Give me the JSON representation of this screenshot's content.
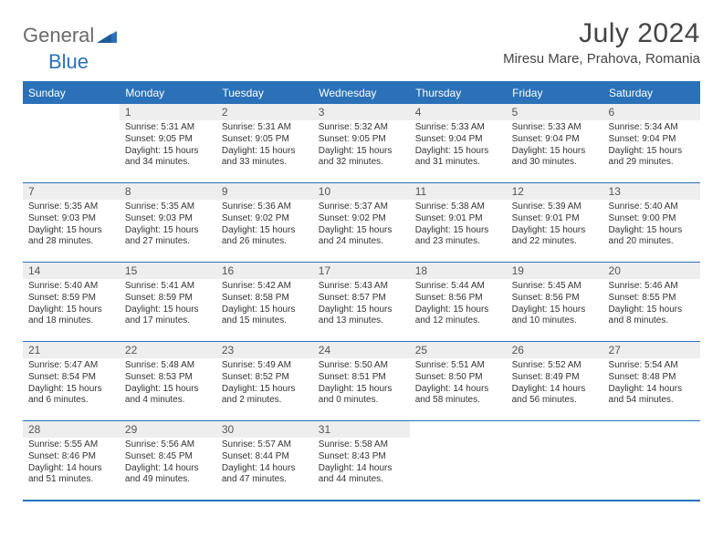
{
  "brand": {
    "word1": "General",
    "word2": "Blue"
  },
  "title": "July 2024",
  "location": "Miresu Mare, Prahova, Romania",
  "colors": {
    "header_bg": "#2a71b8",
    "header_text": "#ffffff",
    "daynum_bg": "#eeeeee",
    "border": "#2a71b8",
    "text": "#333333",
    "title_text": "#444444",
    "logo_gray": "#6a6a6a",
    "logo_blue": "#2a71b8",
    "page_bg": "#ffffff"
  },
  "typography": {
    "month_title_size": 30,
    "location_size": 15,
    "day_header_size": 12,
    "daynum_size": 12,
    "body_size": 10
  },
  "columns": [
    "Sunday",
    "Monday",
    "Tuesday",
    "Wednesday",
    "Thursday",
    "Friday",
    "Saturday"
  ],
  "weeks": [
    [
      {
        "n": "",
        "lines": []
      },
      {
        "n": "1",
        "lines": [
          "Sunrise: 5:31 AM",
          "Sunset: 9:05 PM",
          "Daylight: 15 hours",
          "and 34 minutes."
        ]
      },
      {
        "n": "2",
        "lines": [
          "Sunrise: 5:31 AM",
          "Sunset: 9:05 PM",
          "Daylight: 15 hours",
          "and 33 minutes."
        ]
      },
      {
        "n": "3",
        "lines": [
          "Sunrise: 5:32 AM",
          "Sunset: 9:05 PM",
          "Daylight: 15 hours",
          "and 32 minutes."
        ]
      },
      {
        "n": "4",
        "lines": [
          "Sunrise: 5:33 AM",
          "Sunset: 9:04 PM",
          "Daylight: 15 hours",
          "and 31 minutes."
        ]
      },
      {
        "n": "5",
        "lines": [
          "Sunrise: 5:33 AM",
          "Sunset: 9:04 PM",
          "Daylight: 15 hours",
          "and 30 minutes."
        ]
      },
      {
        "n": "6",
        "lines": [
          "Sunrise: 5:34 AM",
          "Sunset: 9:04 PM",
          "Daylight: 15 hours",
          "and 29 minutes."
        ]
      }
    ],
    [
      {
        "n": "7",
        "lines": [
          "Sunrise: 5:35 AM",
          "Sunset: 9:03 PM",
          "Daylight: 15 hours",
          "and 28 minutes."
        ]
      },
      {
        "n": "8",
        "lines": [
          "Sunrise: 5:35 AM",
          "Sunset: 9:03 PM",
          "Daylight: 15 hours",
          "and 27 minutes."
        ]
      },
      {
        "n": "9",
        "lines": [
          "Sunrise: 5:36 AM",
          "Sunset: 9:02 PM",
          "Daylight: 15 hours",
          "and 26 minutes."
        ]
      },
      {
        "n": "10",
        "lines": [
          "Sunrise: 5:37 AM",
          "Sunset: 9:02 PM",
          "Daylight: 15 hours",
          "and 24 minutes."
        ]
      },
      {
        "n": "11",
        "lines": [
          "Sunrise: 5:38 AM",
          "Sunset: 9:01 PM",
          "Daylight: 15 hours",
          "and 23 minutes."
        ]
      },
      {
        "n": "12",
        "lines": [
          "Sunrise: 5:39 AM",
          "Sunset: 9:01 PM",
          "Daylight: 15 hours",
          "and 22 minutes."
        ]
      },
      {
        "n": "13",
        "lines": [
          "Sunrise: 5:40 AM",
          "Sunset: 9:00 PM",
          "Daylight: 15 hours",
          "and 20 minutes."
        ]
      }
    ],
    [
      {
        "n": "14",
        "lines": [
          "Sunrise: 5:40 AM",
          "Sunset: 8:59 PM",
          "Daylight: 15 hours",
          "and 18 minutes."
        ]
      },
      {
        "n": "15",
        "lines": [
          "Sunrise: 5:41 AM",
          "Sunset: 8:59 PM",
          "Daylight: 15 hours",
          "and 17 minutes."
        ]
      },
      {
        "n": "16",
        "lines": [
          "Sunrise: 5:42 AM",
          "Sunset: 8:58 PM",
          "Daylight: 15 hours",
          "and 15 minutes."
        ]
      },
      {
        "n": "17",
        "lines": [
          "Sunrise: 5:43 AM",
          "Sunset: 8:57 PM",
          "Daylight: 15 hours",
          "and 13 minutes."
        ]
      },
      {
        "n": "18",
        "lines": [
          "Sunrise: 5:44 AM",
          "Sunset: 8:56 PM",
          "Daylight: 15 hours",
          "and 12 minutes."
        ]
      },
      {
        "n": "19",
        "lines": [
          "Sunrise: 5:45 AM",
          "Sunset: 8:56 PM",
          "Daylight: 15 hours",
          "and 10 minutes."
        ]
      },
      {
        "n": "20",
        "lines": [
          "Sunrise: 5:46 AM",
          "Sunset: 8:55 PM",
          "Daylight: 15 hours",
          "and 8 minutes."
        ]
      }
    ],
    [
      {
        "n": "21",
        "lines": [
          "Sunrise: 5:47 AM",
          "Sunset: 8:54 PM",
          "Daylight: 15 hours",
          "and 6 minutes."
        ]
      },
      {
        "n": "22",
        "lines": [
          "Sunrise: 5:48 AM",
          "Sunset: 8:53 PM",
          "Daylight: 15 hours",
          "and 4 minutes."
        ]
      },
      {
        "n": "23",
        "lines": [
          "Sunrise: 5:49 AM",
          "Sunset: 8:52 PM",
          "Daylight: 15 hours",
          "and 2 minutes."
        ]
      },
      {
        "n": "24",
        "lines": [
          "Sunrise: 5:50 AM",
          "Sunset: 8:51 PM",
          "Daylight: 15 hours",
          "and 0 minutes."
        ]
      },
      {
        "n": "25",
        "lines": [
          "Sunrise: 5:51 AM",
          "Sunset: 8:50 PM",
          "Daylight: 14 hours",
          "and 58 minutes."
        ]
      },
      {
        "n": "26",
        "lines": [
          "Sunrise: 5:52 AM",
          "Sunset: 8:49 PM",
          "Daylight: 14 hours",
          "and 56 minutes."
        ]
      },
      {
        "n": "27",
        "lines": [
          "Sunrise: 5:54 AM",
          "Sunset: 8:48 PM",
          "Daylight: 14 hours",
          "and 54 minutes."
        ]
      }
    ],
    [
      {
        "n": "28",
        "lines": [
          "Sunrise: 5:55 AM",
          "Sunset: 8:46 PM",
          "Daylight: 14 hours",
          "and 51 minutes."
        ]
      },
      {
        "n": "29",
        "lines": [
          "Sunrise: 5:56 AM",
          "Sunset: 8:45 PM",
          "Daylight: 14 hours",
          "and 49 minutes."
        ]
      },
      {
        "n": "30",
        "lines": [
          "Sunrise: 5:57 AM",
          "Sunset: 8:44 PM",
          "Daylight: 14 hours",
          "and 47 minutes."
        ]
      },
      {
        "n": "31",
        "lines": [
          "Sunrise: 5:58 AM",
          "Sunset: 8:43 PM",
          "Daylight: 14 hours",
          "and 44 minutes."
        ]
      },
      {
        "n": "",
        "lines": []
      },
      {
        "n": "",
        "lines": []
      },
      {
        "n": "",
        "lines": []
      }
    ]
  ]
}
